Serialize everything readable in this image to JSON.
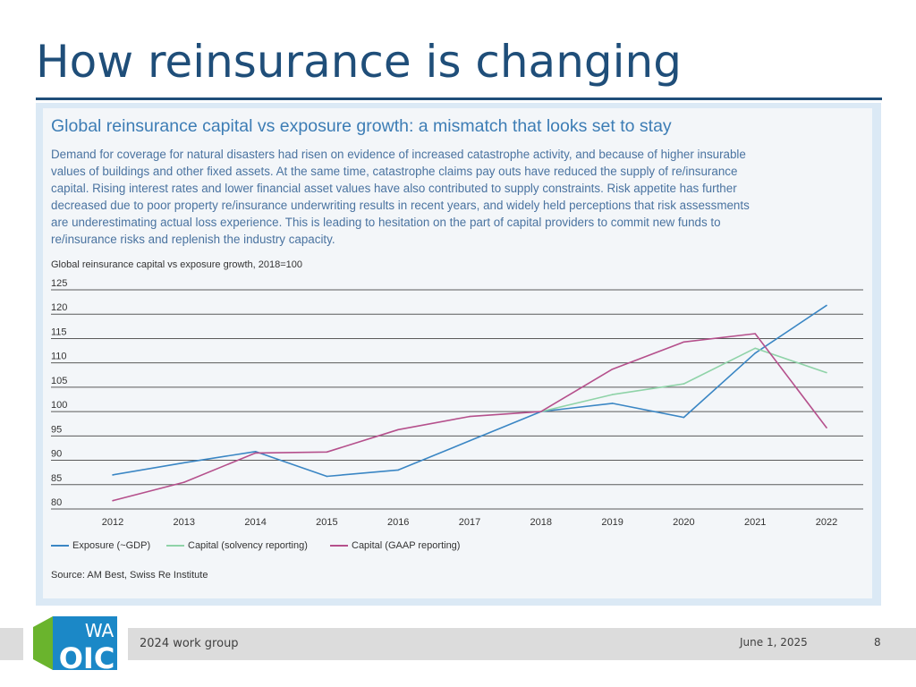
{
  "slide": {
    "title": "How reinsurance is changing",
    "footer_left": "2024 work group",
    "footer_date": "June 1, 2025",
    "page_number": "8",
    "logo_text_top": "WA",
    "logo_text_bottom": "OIC"
  },
  "figure": {
    "title": "Global reinsurance capital vs exposure growth: a mismatch that looks set to stay",
    "description_lines": [
      "Demand for coverage for natural disasters had risen on evidence of increased catastrophe activity, and because of higher insurable",
      "values of buildings and other fixed assets. At the same time, catastrophe claims pay outs have reduced the supply of re/insurance",
      "capital. Rising interest rates and lower financial asset values have also contributed to supply constraints. Risk appetite has further",
      "decreased due to poor property re/insurance underwriting results in recent years, and widely held perceptions that risk assessments",
      "are underestimating actual loss experience. This is leading to hesitation on the part of capital providers to commit new funds to",
      "re/insurance risks and replenish the industry capacity."
    ],
    "chart_caption": "Global reinsurance capital vs exposure growth, 2018=100",
    "source": "Source: AM Best, Swiss Re Institute"
  },
  "chart_data": {
    "type": "line",
    "title": "Global reinsurance capital vs exposure growth, 2018=100",
    "xlabel": "",
    "ylabel": "",
    "ylim": [
      80,
      125
    ],
    "y_ticks": [
      125,
      120,
      115,
      110,
      105,
      100,
      95,
      90,
      85,
      80
    ],
    "categories": [
      "2012",
      "2013",
      "2014",
      "2015",
      "2016",
      "2017",
      "2018",
      "2019",
      "2020",
      "2021",
      "2022"
    ],
    "series": [
      {
        "name": "Exposure (~GDP)",
        "color": "#3a86c4",
        "values": [
          87,
          89.5,
          91.8,
          86.7,
          88,
          94,
          100,
          101.7,
          98.8,
          112,
          121.8
        ]
      },
      {
        "name": "Capital (solvency reporting)",
        "color": "#8fd3a8",
        "values": [
          null,
          null,
          null,
          null,
          null,
          null,
          100,
          103.5,
          105.7,
          113,
          108
        ]
      },
      {
        "name": "Capital (GAAP reporting)",
        "color": "#b5508c",
        "values": [
          81.7,
          85.5,
          91.5,
          91.7,
          96.3,
          99,
          100,
          108.7,
          114.3,
          116,
          96.7
        ]
      }
    ],
    "legend_position": "bottom-left",
    "grid": true
  }
}
